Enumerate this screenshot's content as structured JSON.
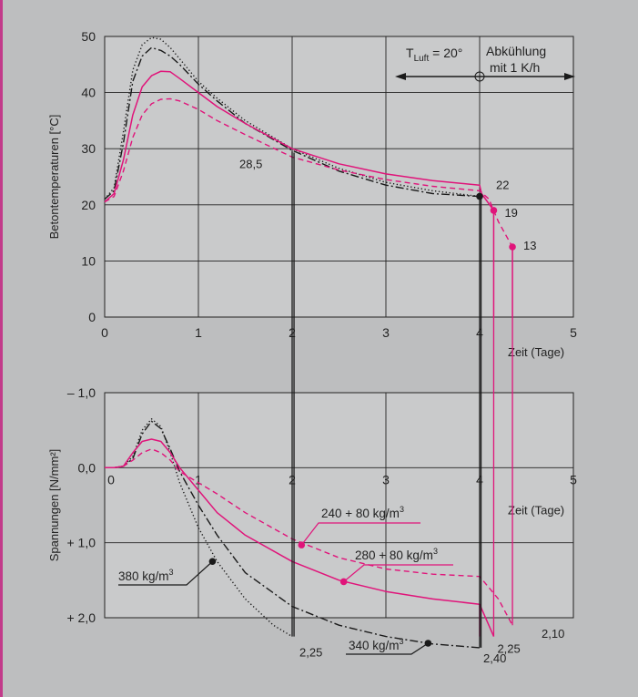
{
  "chart_data": [
    {
      "type": "line",
      "ylabel": "Betontemperaturen [°C]",
      "xlabel": "Zeit (Tage)",
      "xlim": [
        0,
        5
      ],
      "ylim": [
        0,
        50
      ],
      "x_ticks": [
        "0",
        "1",
        "2",
        "3",
        "4",
        "5"
      ],
      "y_ticks": [
        "0",
        "10",
        "20",
        "30",
        "40",
        "50"
      ],
      "grid": true,
      "annotations": {
        "tluft_prefix": "T",
        "tluft_sub": "Luft",
        "tluft_value": " = 20°",
        "cooling_line1": "Abkühlung",
        "cooling_line2": "mit 1 K/h"
      },
      "series": [
        {
          "style": "dotted",
          "color": "#1a1a1a",
          "x": [
            0,
            0.1,
            0.2,
            0.3,
            0.4,
            0.5,
            0.6,
            0.7,
            0.8,
            1.0,
            1.2,
            1.5,
            2.0,
            2.5,
            3.0,
            3.5,
            4.0
          ],
          "y": [
            21,
            23,
            33,
            44,
            48.5,
            49.8,
            49.5,
            48,
            46,
            42,
            39,
            35,
            30,
            26.5,
            24,
            22.5,
            21.5
          ]
        },
        {
          "style": "dashdot",
          "color": "#1a1a1a",
          "x": [
            0,
            0.1,
            0.2,
            0.3,
            0.4,
            0.5,
            0.6,
            0.7,
            0.8,
            1.0,
            1.2,
            1.5,
            2.0,
            2.5,
            3.0,
            3.5,
            4.0
          ],
          "y": [
            21,
            22.5,
            31,
            42,
            46.5,
            48,
            47.5,
            46.5,
            45,
            41.5,
            38.5,
            34.5,
            29.7,
            26,
            23.5,
            22,
            21.5
          ]
        },
        {
          "style": "solid",
          "color": "#e0147a",
          "x": [
            0,
            0.1,
            0.2,
            0.3,
            0.4,
            0.5,
            0.6,
            0.7,
            0.8,
            1.0,
            1.2,
            1.5,
            2.0,
            2.5,
            3.0,
            3.5,
            4.0,
            4.02,
            4.15
          ],
          "y": [
            20.5,
            22,
            28,
            36,
            41,
            43,
            43.8,
            43.7,
            42.5,
            40,
            37.5,
            34.5,
            30,
            27.3,
            25.5,
            24.3,
            23.5,
            22,
            19
          ]
        },
        {
          "style": "dashed",
          "color": "#e0147a",
          "x": [
            0,
            0.1,
            0.2,
            0.3,
            0.4,
            0.5,
            0.6,
            0.7,
            0.8,
            1.0,
            1.2,
            1.5,
            2.0,
            2.5,
            3.0,
            3.5,
            4.0,
            4.1,
            4.2,
            4.35
          ],
          "y": [
            20.5,
            21.5,
            26,
            32,
            36,
            38,
            38.8,
            38.9,
            38.5,
            37,
            35,
            32.5,
            28.5,
            26.2,
            24.5,
            23.3,
            22.5,
            21,
            17,
            12.5
          ]
        }
      ],
      "value_labels": [
        {
          "x": 2.0,
          "y": 29.5,
          "label": "28,5"
        },
        {
          "x": 4.0,
          "y": 21.5,
          "label": "22"
        },
        {
          "x": 4.15,
          "y": 19,
          "label": "19"
        },
        {
          "x": 4.35,
          "y": 12.5,
          "label": "13"
        }
      ]
    },
    {
      "type": "line",
      "ylabel": "Spannungen [N/mm²]",
      "xlabel": "Zeit (Tage)",
      "xlim": [
        0,
        5
      ],
      "ylim": [
        -1.0,
        2.0
      ],
      "y_inverted": true,
      "x_ticks": [
        "0",
        "1",
        "2",
        "3",
        "4",
        "5"
      ],
      "y_ticks": [
        "– 1,0",
        "0,0",
        "+ 1,0",
        "+ 2,0"
      ],
      "grid": true,
      "series": [
        {
          "name": "380 kg/m³",
          "style": "dotted",
          "color": "#1a1a1a",
          "x": [
            0,
            0.1,
            0.2,
            0.3,
            0.4,
            0.5,
            0.6,
            0.7,
            0.8,
            1.0,
            1.2,
            1.5,
            1.8,
            2.0
          ],
          "y": [
            0,
            0,
            -0.02,
            -0.15,
            -0.5,
            -0.65,
            -0.55,
            -0.2,
            0.2,
            0.8,
            1.25,
            1.75,
            2.1,
            2.25
          ]
        },
        {
          "name": "340 kg/m³",
          "style": "dashdot",
          "color": "#1a1a1a",
          "x": [
            0,
            0.1,
            0.2,
            0.3,
            0.4,
            0.5,
            0.6,
            0.7,
            0.8,
            1.0,
            1.2,
            1.5,
            2.0,
            2.5,
            3.0,
            3.5,
            4.0
          ],
          "y": [
            0,
            0,
            -0.02,
            -0.12,
            -0.45,
            -0.62,
            -0.52,
            -0.25,
            0.05,
            0.5,
            0.9,
            1.4,
            1.85,
            2.1,
            2.25,
            2.35,
            2.4
          ]
        },
        {
          "name": "280 + 80 kg/m³",
          "style": "solid",
          "color": "#e0147a",
          "x": [
            0,
            0.1,
            0.2,
            0.3,
            0.4,
            0.5,
            0.6,
            0.7,
            0.8,
            1.0,
            1.2,
            1.5,
            2.0,
            2.5,
            3.0,
            3.5,
            4.0,
            4.15
          ],
          "y": [
            0,
            0,
            -0.02,
            -0.2,
            -0.35,
            -0.38,
            -0.35,
            -0.2,
            0,
            0.3,
            0.6,
            0.9,
            1.25,
            1.5,
            1.65,
            1.75,
            1.82,
            2.25
          ]
        },
        {
          "name": "240 + 80 kg/m³",
          "style": "dashed",
          "color": "#e0147a",
          "x": [
            0,
            0.1,
            0.2,
            0.3,
            0.4,
            0.5,
            0.6,
            0.7,
            0.8,
            1.0,
            1.2,
            1.5,
            2.0,
            2.5,
            3.0,
            3.5,
            4.0,
            4.2,
            4.35
          ],
          "y": [
            0,
            0,
            -0.02,
            -0.1,
            -0.2,
            -0.25,
            -0.2,
            -0.1,
            0.05,
            0.2,
            0.35,
            0.6,
            0.95,
            1.2,
            1.35,
            1.42,
            1.45,
            1.75,
            2.1
          ]
        }
      ],
      "value_labels": [
        {
          "x": 2.0,
          "y": 2.25,
          "label": "2,25"
        },
        {
          "x": 4.0,
          "y": 2.4,
          "label": "2,40"
        },
        {
          "x": 4.15,
          "y": 2.25,
          "label": "2,25"
        },
        {
          "x": 4.35,
          "y": 2.1,
          "label": "2,10"
        }
      ],
      "legend_labels": [
        {
          "text": "380 kg/m",
          "sup": "3"
        },
        {
          "text": "340 kg/m",
          "sup": "3"
        },
        {
          "text": "280 + 80 kg/m",
          "sup": "3"
        },
        {
          "text": "240 + 80 kg/m",
          "sup": "3"
        }
      ]
    }
  ]
}
